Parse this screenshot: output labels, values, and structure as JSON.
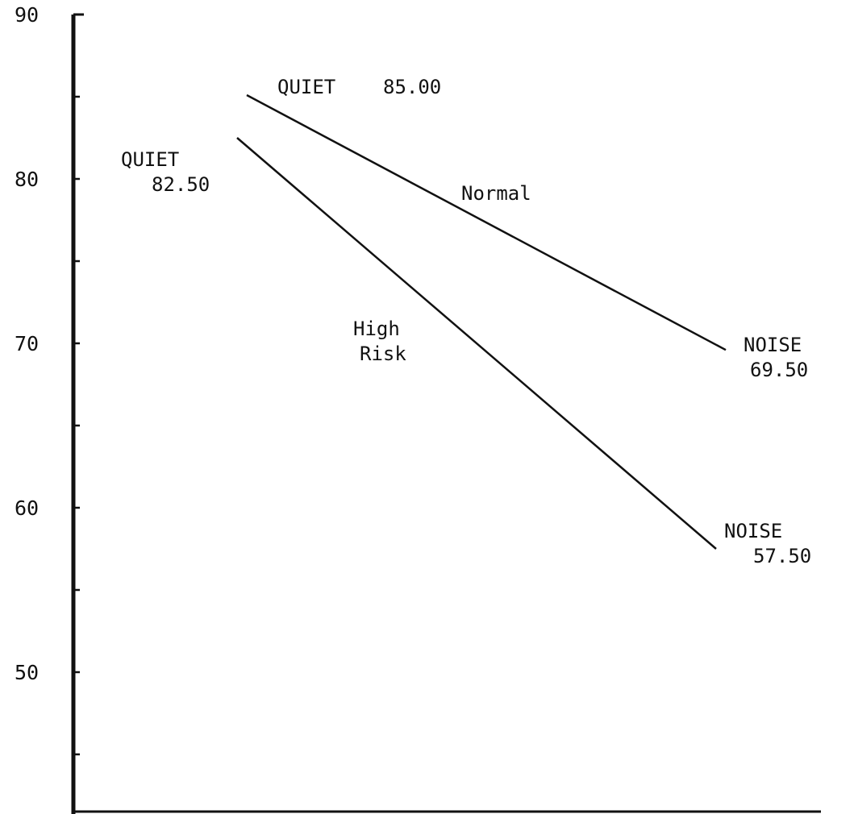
{
  "chart_data": {
    "type": "line",
    "title": "",
    "xlabel": "",
    "ylabel": "",
    "x": [
      "QUIET",
      "NOISE"
    ],
    "ylim": [
      40,
      90
    ],
    "yticks_labeled": [
      50,
      60,
      70,
      80,
      90
    ],
    "yticks_minor": [
      45,
      55,
      65,
      75,
      85
    ],
    "grid": false,
    "legend": "none",
    "series": [
      {
        "name": "Normal",
        "values": [
          85.0,
          69.5
        ],
        "point_labels": [
          {
            "category": "QUIET",
            "value": "85.00"
          },
          {
            "category": "NOISE",
            "value": "69.50"
          }
        ]
      },
      {
        "name": "High Risk",
        "values": [
          82.5,
          57.5
        ],
        "point_labels": [
          {
            "category": "QUIET",
            "value": "82.50"
          },
          {
            "category": "NOISE",
            "value": "57.50"
          }
        ]
      }
    ],
    "line_color": "#111111"
  }
}
